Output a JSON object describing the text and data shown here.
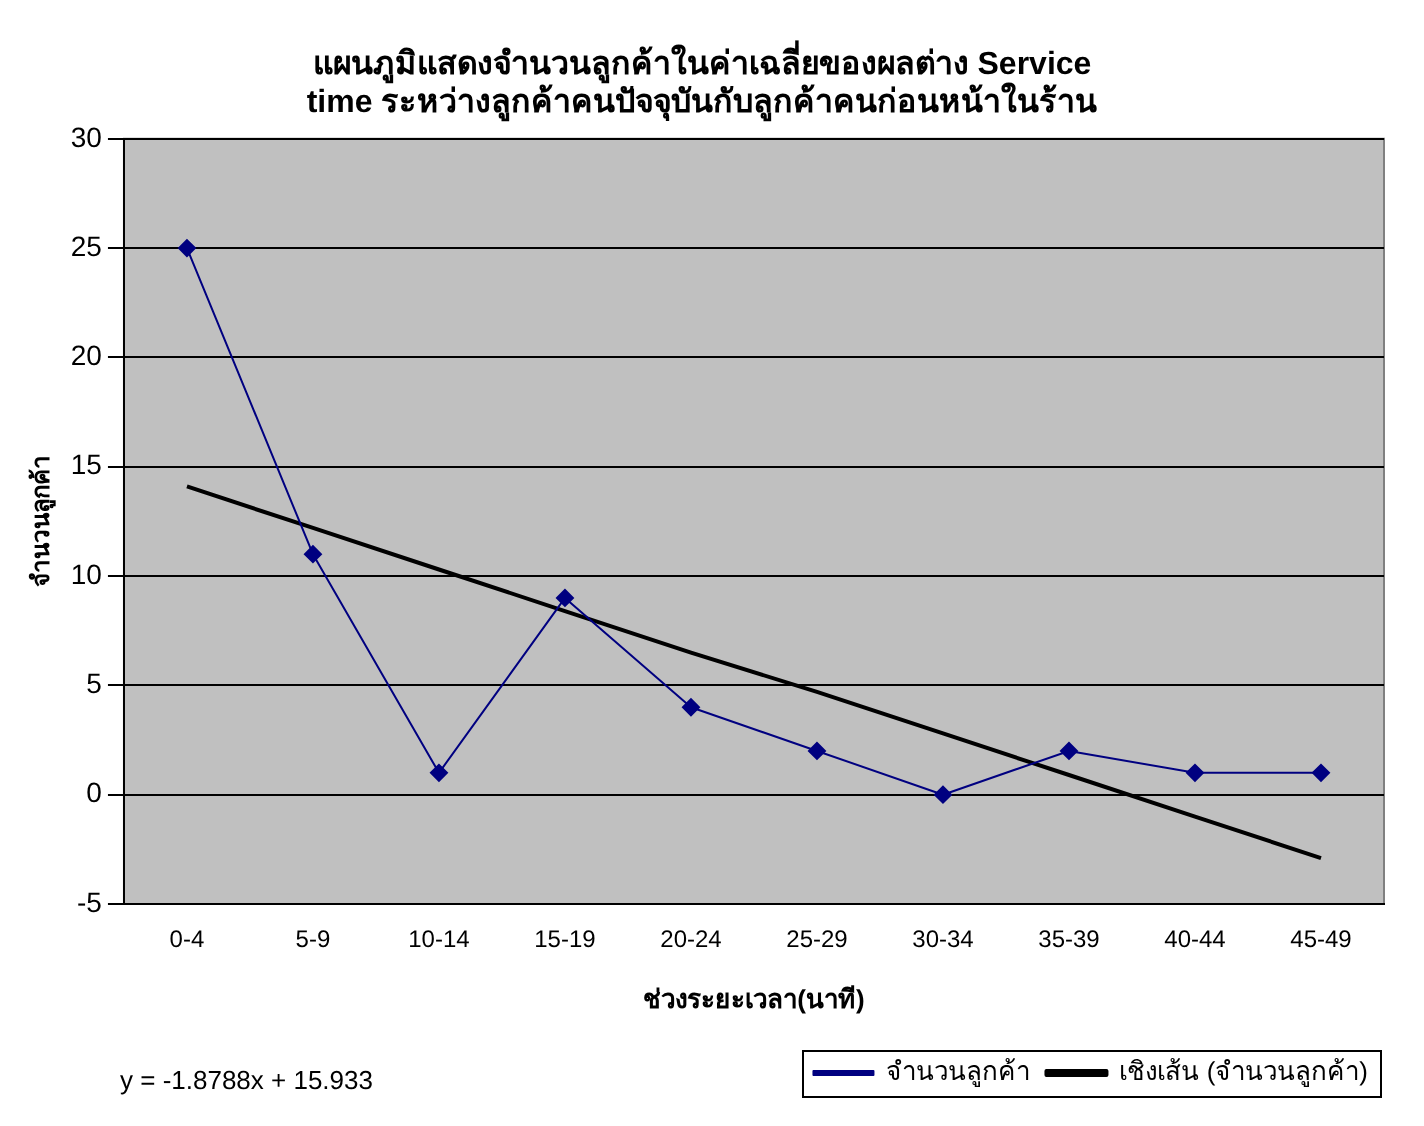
{
  "chart_data": {
    "type": "line",
    "title": "แผนภูมิแสดงจำนวนลูกค้าในค่าเฉลี่ยของผลต่าง Service time ระหว่างลูกค้าคนปัจจุบันกับลูกค้าคนก่อนหน้าในร้าน",
    "xlabel": "ช่วงระยะเวลา(นาที)",
    "ylabel": "จำนวนลูกค้า",
    "categories": [
      "0-4",
      "5-9",
      "10-14",
      "15-19",
      "20-24",
      "25-29",
      "30-34",
      "35-39",
      "40-44",
      "45-49"
    ],
    "series": [
      {
        "name": "จำนวนลูกค้า",
        "color": "#000080",
        "marker": "diamond",
        "values": [
          25,
          11,
          1,
          9,
          4,
          2,
          0,
          2,
          1,
          1
        ]
      },
      {
        "name": "เชิงเส้น (จำนวนลูกค้า)",
        "color": "#000000",
        "marker": "none",
        "values": [
          14.1,
          12.2,
          10.3,
          8.4,
          6.5,
          4.7,
          2.8,
          0.9,
          -1.0,
          -2.9
        ]
      }
    ],
    "ylim": [
      -5,
      30
    ],
    "yticks": [
      -5,
      0,
      5,
      10,
      15,
      20,
      25,
      30
    ],
    "grid": "y",
    "legend": "bottom right",
    "annotations": [
      "y = -1.8788x + 15.933"
    ]
  }
}
